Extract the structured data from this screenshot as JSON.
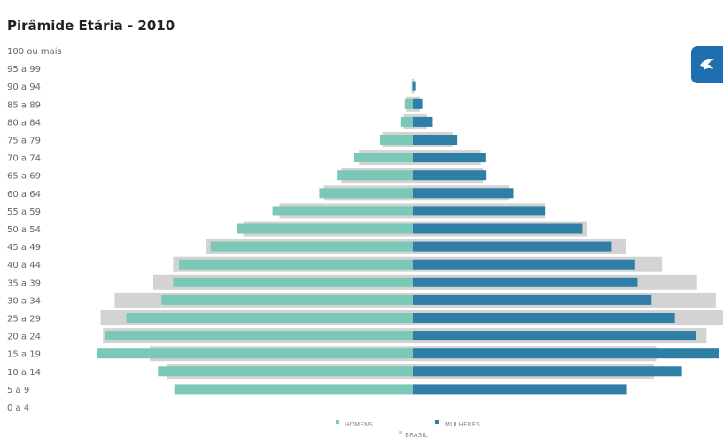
{
  "chart_data": {
    "type": "bar",
    "orientation": "horizontal-diverging",
    "title": "Pirâmide Etária - 2010",
    "categories": [
      "100 ou mais",
      "95 a 99",
      "90 a 94",
      "85 a 89",
      "80 a 84",
      "75 a 79",
      "70 a 74",
      "65 a 69",
      "60 a 64",
      "55 a 59",
      "50 a 54",
      "45 a 49",
      "40 a 44",
      "35 a 39",
      "30 a 34",
      "25 a 29",
      "20 a 24",
      "15 a 19",
      "10 a 14",
      "5 a 9",
      "0 a 4"
    ],
    "series": [
      {
        "name": "HOMENS",
        "side": "left",
        "color": "#7cc8b8",
        "values": [
          0.0,
          0.0,
          0.1,
          0.7,
          1.0,
          2.8,
          5.0,
          6.5,
          8.0,
          12.0,
          15.0,
          17.3,
          20.0,
          20.5,
          21.5,
          24.5,
          26.3,
          27.0,
          21.8,
          20.4,
          0.0
        ]
      },
      {
        "name": "MULHERES",
        "side": "right",
        "color": "#2f7ea6",
        "values": [
          0.0,
          0.0,
          0.2,
          0.8,
          1.7,
          3.8,
          6.2,
          6.3,
          8.6,
          11.3,
          14.5,
          17.0,
          19.0,
          19.2,
          20.4,
          22.4,
          24.2,
          26.2,
          23.0,
          18.3,
          0.0
        ]
      },
      {
        "name": "BRASIL",
        "side": "both",
        "color": "#d3d3d3",
        "values": [
          0.0,
          0.0,
          0.1,
          0.6,
          0.8,
          2.6,
          4.6,
          6.1,
          7.6,
          11.4,
          14.5,
          17.7,
          20.5,
          22.2,
          25.5,
          26.7,
          26.5,
          22.5,
          21.0,
          0.0,
          0.0
        ],
        "values_right": [
          0.0,
          0.0,
          0.1,
          0.6,
          1.2,
          3.4,
          5.8,
          6.0,
          8.2,
          11.3,
          14.9,
          18.2,
          21.3,
          24.3,
          25.9,
          26.7,
          25.1,
          20.8,
          20.6,
          0.0,
          0.0
        ]
      }
    ],
    "legend": {
      "items": [
        "HOMENS",
        "MULHERES",
        "BRASIL"
      ],
      "position": "bottom"
    },
    "xlabel": "",
    "ylabel": "",
    "xlim": [
      -27,
      27
    ]
  }
}
